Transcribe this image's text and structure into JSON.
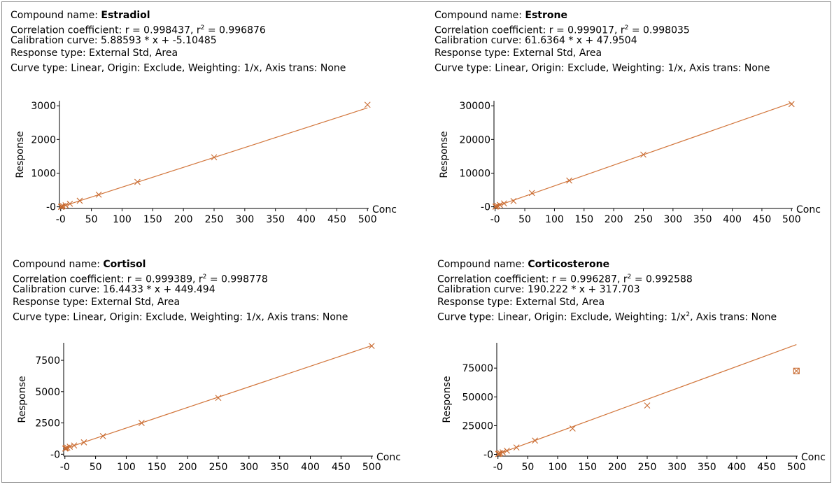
{
  "colors": {
    "line": "#d2763c",
    "marker": "#c86a30",
    "axis": "#000000"
  },
  "chart_data": [
    {
      "type": "scatter",
      "compound_label": "Compound name: ",
      "compound": "Estradiol",
      "correlation_label": "Correlation coefficient: r = 0.998437,  r",
      "correlation_sup": "2",
      "correlation_value": " = 0.996876",
      "calibration": "Calibration curve: 5.88593 * x + -5.10485",
      "response_type": "Response type: External Std, Area",
      "curve_type_prefix": "Curve type: Linear, Origin: Exclude, Weighting: 1/x",
      "curve_type_sup": "",
      "curve_type_suffix": ", Axis trans: None",
      "ylabel": "Response",
      "xlabel": "Conc",
      "x_ticks": [
        "-0",
        "50",
        "100",
        "150",
        "200",
        "250",
        "300",
        "350",
        "400",
        "450",
        "500"
      ],
      "y_ticks": [
        {
          "v": 0,
          "label": "-0"
        },
        {
          "v": 1000,
          "label": "1000"
        },
        {
          "v": 2000,
          "label": "2000"
        },
        {
          "v": 3000,
          "label": "3000"
        }
      ],
      "xlim": [
        -2,
        502
      ],
      "ylim": [
        -50,
        3150
      ],
      "fit": {
        "slope": 5.88593,
        "intercept": -5.10485,
        "x_range": [
          0,
          500
        ]
      },
      "points": [
        {
          "x": 0.5,
          "y": 0
        },
        {
          "x": 1,
          "y": 3
        },
        {
          "x": 2,
          "y": 10
        },
        {
          "x": 4,
          "y": 20
        },
        {
          "x": 8,
          "y": 45
        },
        {
          "x": 15,
          "y": 90
        },
        {
          "x": 31,
          "y": 180
        },
        {
          "x": 62,
          "y": 360
        },
        {
          "x": 125,
          "y": 740
        },
        {
          "x": 250,
          "y": 1470
        },
        {
          "x": 500,
          "y": 3030
        }
      ],
      "excluded_points": []
    },
    {
      "type": "scatter",
      "compound_label": "Compound name: ",
      "compound": "Estrone",
      "correlation_label": "Correlation coefficient: r = 0.999017, r",
      "correlation_sup": "2",
      "correlation_value": " = 0.998035",
      "calibration": "Calibration curve: 61.6364 * x + 47.9504",
      "response_type": "Response type: External Std, Area",
      "curve_type_prefix": "Curve type: Linear, Origin: Exclude, Weighting: 1/x",
      "curve_type_sup": "",
      "curve_type_suffix": ", Axis trans: None",
      "ylabel": "Response",
      "xlabel": "Conc",
      "x_ticks": [
        "-0",
        "50",
        "100",
        "150",
        "200",
        "250",
        "300",
        "350",
        "400",
        "450",
        "500"
      ],
      "y_ticks": [
        {
          "v": 0,
          "label": "-0"
        },
        {
          "v": 10000,
          "label": "10000"
        },
        {
          "v": 20000,
          "label": "20000"
        },
        {
          "v": 30000,
          "label": "30000"
        }
      ],
      "xlim": [
        -2,
        502
      ],
      "ylim": [
        -500,
        31500
      ],
      "fit": {
        "slope": 61.6364,
        "intercept": 47.9504,
        "x_range": [
          0,
          500
        ]
      },
      "points": [
        {
          "x": 0.5,
          "y": 40
        },
        {
          "x": 1,
          "y": 80
        },
        {
          "x": 2,
          "y": 150
        },
        {
          "x": 4,
          "y": 280
        },
        {
          "x": 8,
          "y": 550
        },
        {
          "x": 15,
          "y": 1000
        },
        {
          "x": 31,
          "y": 1700
        },
        {
          "x": 62,
          "y": 4100
        },
        {
          "x": 125,
          "y": 7800
        },
        {
          "x": 250,
          "y": 15500
        },
        {
          "x": 500,
          "y": 30500
        }
      ],
      "excluded_points": []
    },
    {
      "type": "scatter",
      "compound_label": "Compound name: ",
      "compound": "Cortisol",
      "correlation_label": "Correlation coefficient: r = 0.999389, r",
      "correlation_sup": "2",
      "correlation_value": " = 0.998778",
      "calibration": "Calibration curve: 16.4433 * x + 449.494",
      "response_type": "Response type: External Std, Area",
      "curve_type_prefix": "Curve type: Linear, Origin: Exclude, Weighting: 1/x",
      "curve_type_sup": "",
      "curve_type_suffix": ", Axis trans: None",
      "ylabel": "Response",
      "xlabel": "Conc",
      "x_ticks": [
        "-0",
        "50",
        "100",
        "150",
        "200",
        "250",
        "300",
        "350",
        "400",
        "450",
        "500"
      ],
      "y_ticks": [
        {
          "v": 0,
          "label": "-0"
        },
        {
          "v": 2500,
          "label": "2500"
        },
        {
          "v": 5000,
          "label": "5000"
        },
        {
          "v": 7500,
          "label": "7500"
        }
      ],
      "xlim": [
        -2,
        502
      ],
      "ylim": [
        -150,
        8900
      ],
      "fit": {
        "slope": 16.4433,
        "intercept": 449.494,
        "x_range": [
          0,
          500
        ]
      },
      "points": [
        {
          "x": 0.5,
          "y": 450
        },
        {
          "x": 1,
          "y": 470
        },
        {
          "x": 2,
          "y": 500
        },
        {
          "x": 4,
          "y": 530
        },
        {
          "x": 8,
          "y": 600
        },
        {
          "x": 15,
          "y": 700
        },
        {
          "x": 31,
          "y": 950
        },
        {
          "x": 62,
          "y": 1450
        },
        {
          "x": 125,
          "y": 2500
        },
        {
          "x": 250,
          "y": 4500
        },
        {
          "x": 500,
          "y": 8650
        }
      ],
      "excluded_points": []
    },
    {
      "type": "scatter",
      "compound_label": "Compound name: ",
      "compound": "Corticosterone",
      "correlation_label": "Correlation coefficient: r = 0.996287, r",
      "correlation_sup": "2",
      "correlation_value": " = 0.992588",
      "calibration": "Calibration curve: 190.222 * x + 317.703",
      "response_type": "Response type: External Std, Area",
      "curve_type_prefix": "Curve type: Linear, Origin: Exclude, Weighting: 1/x",
      "curve_type_sup": "2",
      "curve_type_suffix": ", Axis trans: None",
      "ylabel": "Response",
      "xlabel": "Conc",
      "x_ticks": [
        "-0",
        "50",
        "100",
        "150",
        "200",
        "250",
        "300",
        "350",
        "400",
        "450",
        "500"
      ],
      "y_ticks": [
        {
          "v": 0,
          "label": "-0"
        },
        {
          "v": 25000,
          "label": "25000"
        },
        {
          "v": 50000,
          "label": "50000"
        },
        {
          "v": 75000,
          "label": "75000"
        }
      ],
      "xlim": [
        -2,
        502
      ],
      "ylim": [
        -1500,
        97000
      ],
      "fit": {
        "slope": 190.222,
        "intercept": 317.703,
        "x_range": [
          0,
          500
        ]
      },
      "points": [
        {
          "x": 0.5,
          "y": 300
        },
        {
          "x": 1,
          "y": 500
        },
        {
          "x": 2,
          "y": 700
        },
        {
          "x": 4,
          "y": 1100
        },
        {
          "x": 8,
          "y": 1800
        },
        {
          "x": 15,
          "y": 3200
        },
        {
          "x": 31,
          "y": 6000
        },
        {
          "x": 62,
          "y": 12000
        },
        {
          "x": 125,
          "y": 22500
        },
        {
          "x": 250,
          "y": 42500
        }
      ],
      "excluded_points": [
        {
          "x": 500,
          "y": 72500
        }
      ]
    }
  ]
}
